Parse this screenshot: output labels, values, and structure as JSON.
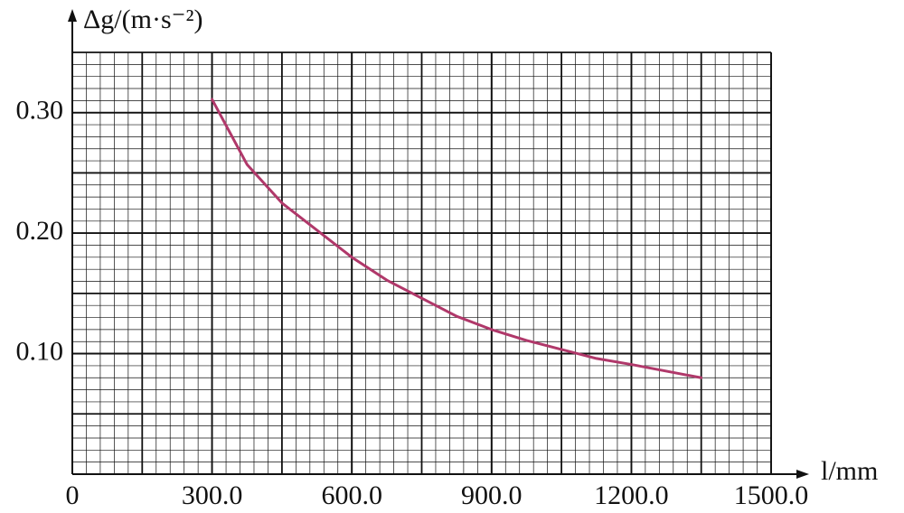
{
  "chart_data": {
    "type": "line",
    "y_label": "Δg/(m·s⁻²)",
    "x_label": "l/mm",
    "x": [
      300,
      375,
      450,
      525,
      600,
      675,
      750,
      825,
      900,
      975,
      1050,
      1125,
      1200,
      1275,
      1350
    ],
    "series": [
      {
        "color": "#b0386a",
        "values": [
          0.311,
          0.257,
          0.225,
          0.2025,
          0.18,
          0.161,
          0.146,
          0.131,
          0.12,
          0.111,
          0.1035,
          0.096,
          0.091,
          0.0855,
          0.08
        ]
      }
    ],
    "xlim": [
      0,
      1500
    ],
    "ylim": [
      0,
      0.35
    ],
    "xticks": [
      0,
      {
        "value": 300,
        "label": "300.0"
      },
      {
        "value": 600,
        "label": "600.0"
      },
      {
        "value": 900,
        "label": "900.0"
      },
      {
        "value": 1200,
        "label": "1200.0"
      },
      {
        "value": 1500,
        "label": "1500.0"
      }
    ],
    "yticks": [
      {
        "value": 0.1,
        "label": "0.10"
      },
      {
        "value": 0.2,
        "label": "0.20"
      },
      {
        "value": 0.3,
        "label": "0.30"
      }
    ],
    "grid": true
  }
}
